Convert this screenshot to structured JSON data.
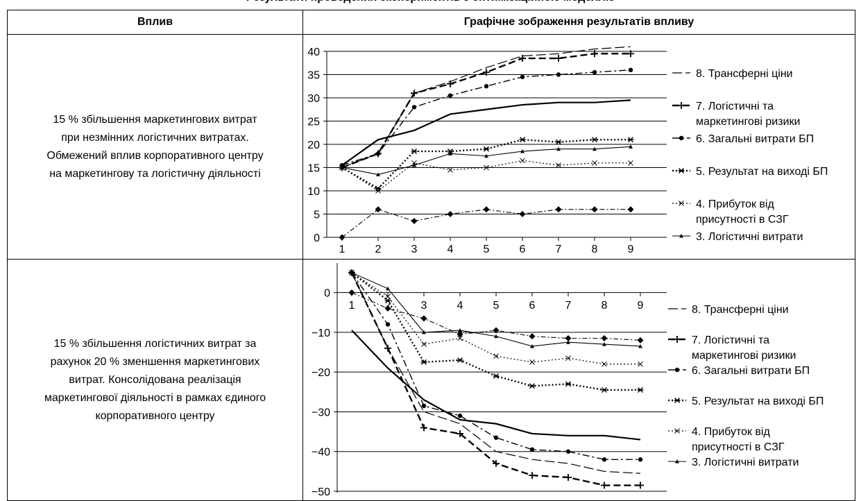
{
  "caption": "Результати проведених експериментів з оптимізаційною моделлю",
  "table": {
    "header_impact": "Вплив",
    "header_graph": "Графічне зображення результатів впливу"
  },
  "rows": [
    {
      "impact_lines": [
        "15 % збільшення маркетингових витрат",
        "при незмінних логістичних витратах.",
        "Обмежений вплив корпоративного центру",
        "на маркетингову та логістичну діяльності"
      ]
    },
    {
      "impact_lines": [
        "15 % збільшення логістичних витрат за",
        "рахунок 20 % зменшення маркетингових",
        "витрат. Консолідована реалізація",
        "маркетингової діяльності в рамках єдиного",
        "корпоративного центру"
      ]
    }
  ],
  "chart_data": [
    {
      "type": "line",
      "x": [
        1,
        2,
        3,
        4,
        5,
        6,
        7,
        8,
        9
      ],
      "ylim": [
        0,
        40
      ],
      "yticks": [
        0,
        5,
        10,
        15,
        20,
        25,
        30,
        35,
        40
      ],
      "grid": true,
      "legend_position": "right",
      "series": [
        {
          "name": "8. Трансферні ціни",
          "values": [
            15,
            18,
            31,
            33.5,
            36.5,
            39,
            39.5,
            40.5,
            41
          ]
        },
        {
          "name": "7. Логістичні та маркетингові ризики",
          "values": [
            15,
            18,
            31,
            33,
            35.5,
            38.5,
            38.5,
            39.5,
            39.5
          ]
        },
        {
          "name": "6. Загальні витрати БП",
          "values": [
            15.5,
            18,
            28,
            30.5,
            32.5,
            34.5,
            35,
            35.5,
            36
          ]
        },
        {
          "name": "5. Результат на виході БП",
          "values": [
            15,
            10.5,
            18.5,
            18.5,
            19,
            21,
            20.5,
            21,
            21
          ]
        },
        {
          "name": "4. Прибуток від присутності в СЗГ",
          "values": [
            15,
            10,
            16,
            14.5,
            15,
            16.5,
            15.5,
            16,
            16
          ]
        },
        {
          "name": "3. Логістичні витрати",
          "values": [
            15,
            13.5,
            15.5,
            18,
            17.5,
            18.5,
            19,
            19,
            19.5
          ]
        },
        {
          "values": [
            15.5,
            21,
            23,
            26.5,
            27.5,
            28.5,
            29,
            29,
            29.5
          ]
        },
        {
          "values": [
            0,
            6,
            3.5,
            5,
            6,
            5,
            6,
            6,
            6
          ]
        }
      ]
    },
    {
      "type": "line",
      "x": [
        1,
        2,
        3,
        4,
        5,
        6,
        7,
        8,
        9
      ],
      "ylim": [
        -50,
        5
      ],
      "yticks": [
        0,
        -10,
        -20,
        -30,
        -40,
        -50
      ],
      "grid": true,
      "legend_position": "right",
      "series": [
        {
          "name": "8. Трансферні ціни",
          "values": [
            5,
            -14,
            -30,
            -33,
            -40,
            -42,
            -43,
            -45,
            -45.5
          ]
        },
        {
          "name": "7. Логістичні та маркетингові ризики",
          "values": [
            5,
            -14,
            -34,
            -35.5,
            -43,
            -46,
            -46.5,
            -48.5,
            -48.5
          ]
        },
        {
          "name": "6. Загальні витрати БП",
          "values": [
            5,
            -8,
            -28.5,
            -31,
            -36.5,
            -39.5,
            -40,
            -42,
            -42
          ]
        },
        {
          "name": "5. Результат на виході БП",
          "values": [
            5,
            -2,
            -17.5,
            -17,
            -21,
            -23.5,
            -23,
            -24.5,
            -24.5
          ]
        },
        {
          "name": "4. Прибуток від присутності в СЗГ",
          "values": [
            5,
            -1,
            -13,
            -11.5,
            -16,
            -17.5,
            -16.5,
            -18,
            -18
          ]
        },
        {
          "name": "3. Логістичні витрати",
          "values": [
            5,
            1,
            -10,
            -9.5,
            -11,
            -13.5,
            -12.5,
            -13,
            -13.5
          ]
        },
        {
          "values": [
            -9.5,
            -19,
            -27,
            -32,
            -33,
            -35.5,
            -36,
            -36,
            -37
          ]
        },
        {
          "values": [
            0,
            -4,
            -6.5,
            -10.5,
            -9.5,
            -11,
            -11.5,
            -11.5,
            -12
          ]
        }
      ]
    }
  ]
}
